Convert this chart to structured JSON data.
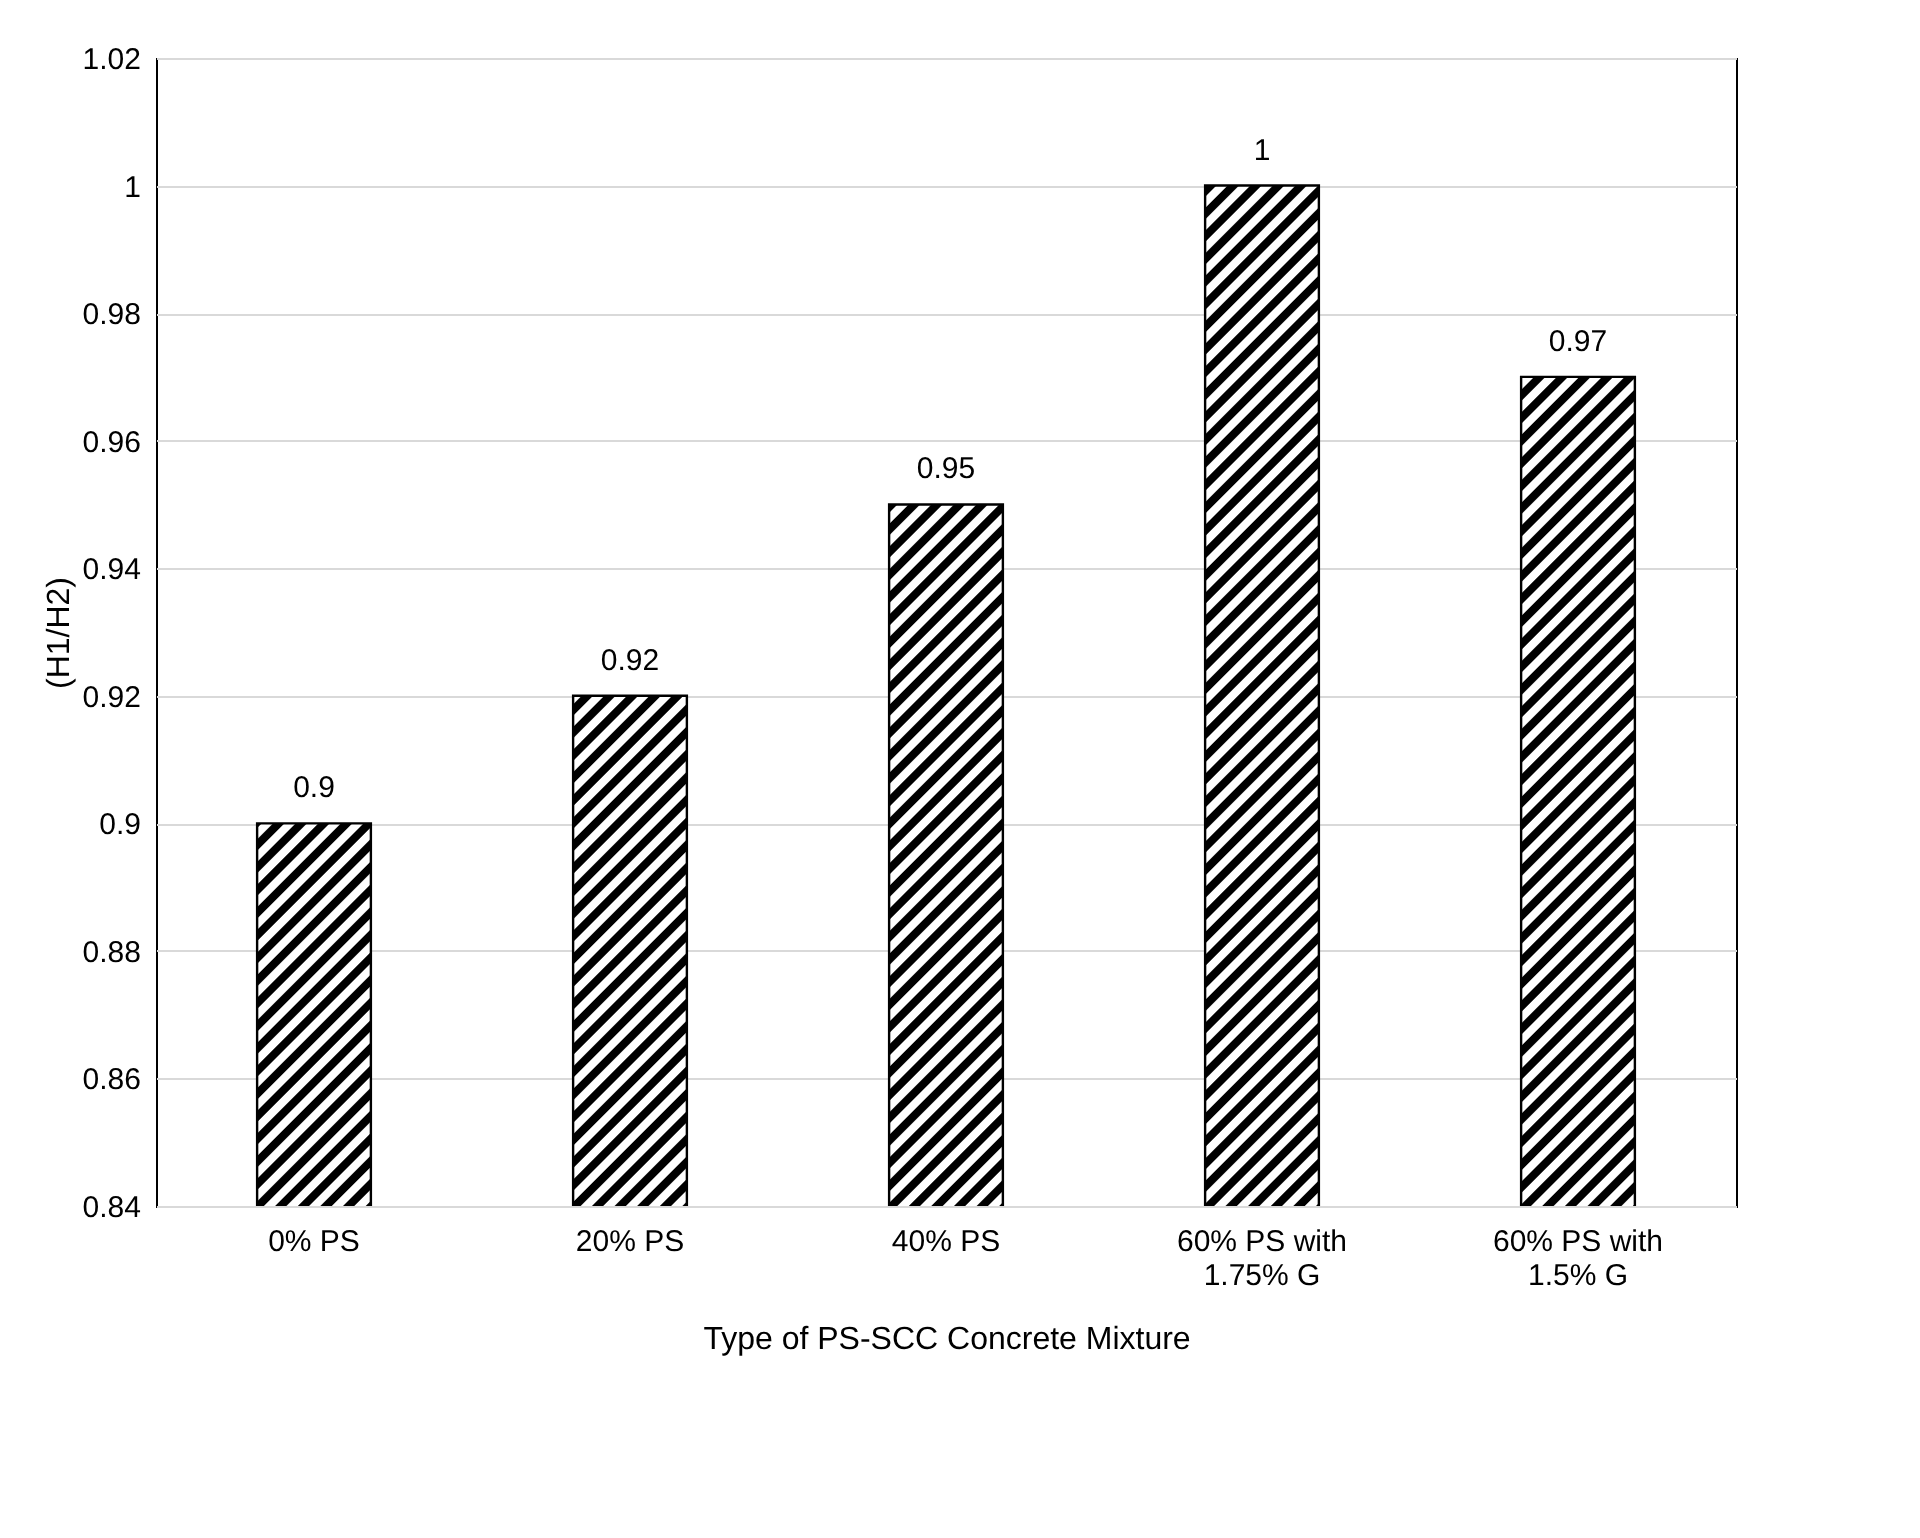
{
  "chart_data": {
    "type": "bar",
    "xlabel": "Type of PS-SCC Concrete Mixture",
    "ylabel": "(H1/H2)",
    "categories": [
      "0% PS",
      "20% PS",
      "40% PS",
      "60% PS with 1.75% G",
      "60% PS with 1.5% G"
    ],
    "values": [
      0.9,
      0.92,
      0.95,
      1,
      0.97
    ],
    "color": "#000000",
    "ylim": [
      0.84,
      1.02
    ],
    "yticks": [
      0.84,
      0.86,
      0.88,
      0.9,
      0.92,
      0.94,
      0.96,
      0.98,
      1,
      1.02
    ],
    "grid": "y",
    "data_labels": true
  }
}
